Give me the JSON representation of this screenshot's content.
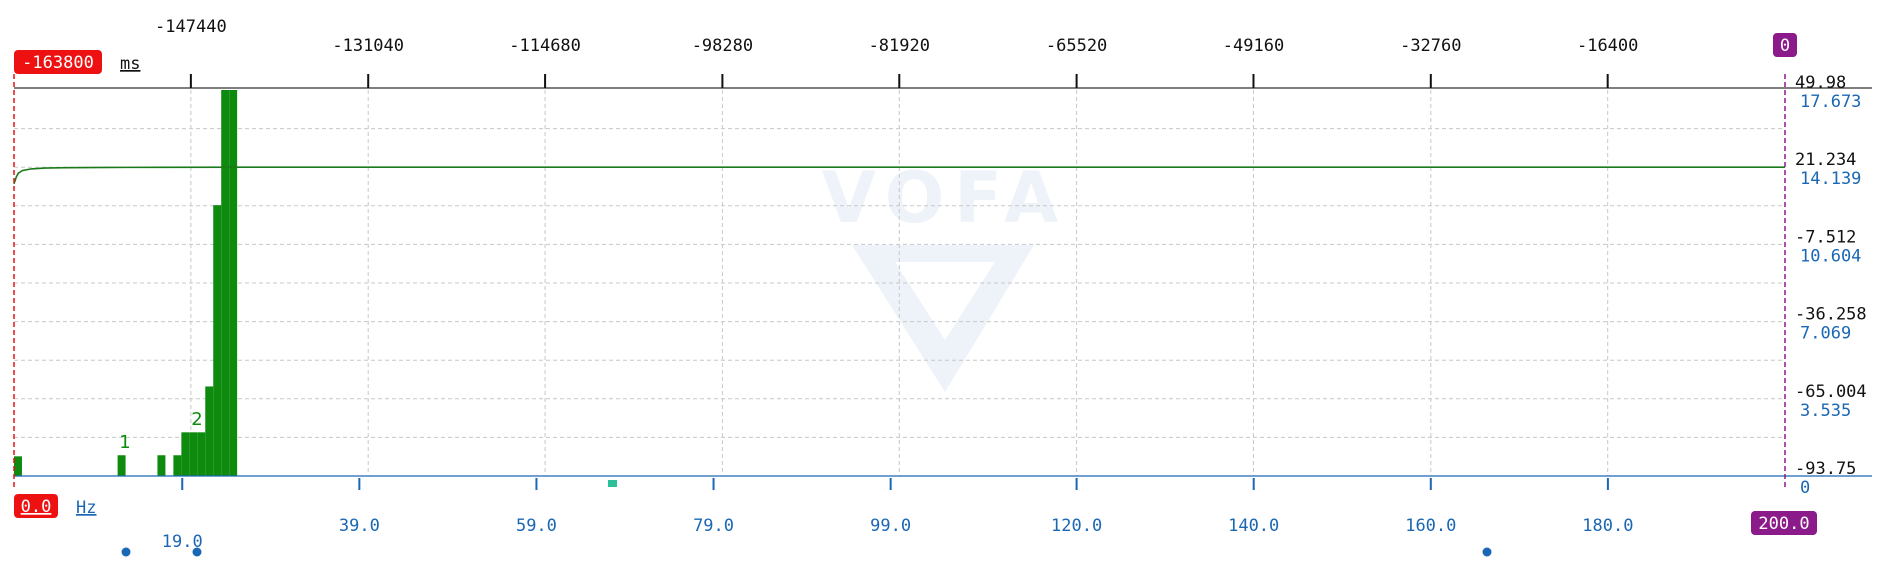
{
  "colors": {
    "cursor_left": "#ee1111",
    "cursor_right": "#8b1a8b",
    "trace": "#1a7a1a",
    "bars": "#0e8a0e",
    "axis_blue": "#1a67b5",
    "marker_teal": "#2bbf9a",
    "watermark": "#eef2f9"
  },
  "watermark": "VOFA",
  "top_axis": {
    "unit": "ms",
    "cursor_left_label": "-163800",
    "cursor_right_label": "0"
  },
  "bottom_axis": {
    "unit": "Hz",
    "cursor_left_label": "0.0",
    "cursor_right_label": "200.0"
  },
  "peak_labels": [
    {
      "text": "1",
      "x_hz": 11.7
    },
    {
      "text": "2",
      "x_hz": 19.0
    }
  ],
  "chart_data": [
    {
      "type": "line",
      "title": "",
      "xlabel": "ms",
      "x_range": [
        -163800,
        0
      ],
      "x_ticks": [
        -147440,
        -131040,
        -114680,
        -98280,
        -81920,
        -65520,
        -49160,
        -32760,
        -16400
      ],
      "y_ticks": [
        49.98,
        21.234,
        -7.512,
        -36.258,
        -65.004,
        -93.75
      ],
      "ylim": [
        -93.75,
        49.98
      ],
      "grid": true,
      "series": [
        {
          "x": [
            -163800,
            -163600,
            -163400,
            -163000,
            -162200,
            -161000,
            -159000,
            -155000,
            -150000,
            -140000,
            -100000,
            0
          ],
          "y": [
            15.0,
            17.5,
            19.0,
            20.0,
            20.6,
            20.9,
            21.05,
            21.15,
            21.2,
            21.234,
            21.234,
            21.234
          ]
        }
      ]
    },
    {
      "type": "bar",
      "title": "",
      "xlabel": "Hz",
      "x_range": [
        0,
        200
      ],
      "x_ticks": [
        19.0,
        39.0,
        59.0,
        79.0,
        99.0,
        120.0,
        140.0,
        160.0,
        180.0
      ],
      "y_ticks": [
        17.673,
        14.139,
        10.604,
        7.069,
        3.535,
        0
      ],
      "ylim": [
        0,
        17.673
      ],
      "grid": true,
      "bin_width": 0.9,
      "series": [
        {
          "x": [
            0.45,
            12.15,
            16.65,
            18.45,
            19.35,
            20.25,
            21.15,
            22.05,
            22.95,
            23.85,
            24.75
          ],
          "y": [
            0.9,
            0.95,
            0.95,
            0.95,
            2.0,
            2.0,
            2.0,
            4.1,
            12.4,
            17.673,
            17.673
          ]
        }
      ]
    }
  ]
}
